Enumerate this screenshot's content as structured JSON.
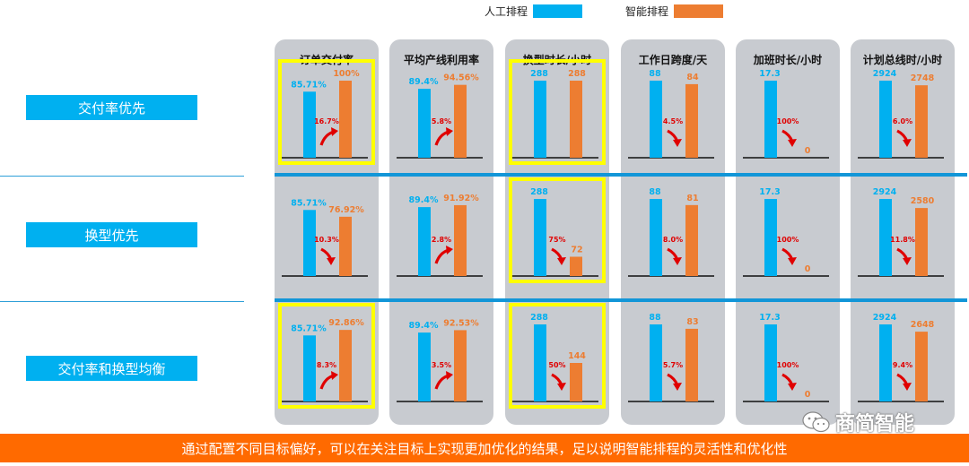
{
  "legend": {
    "manual_label": "人工排程",
    "smart_label": "智能排程",
    "manual_color": "#00b0f0",
    "smart_color": "#ed7d31"
  },
  "row_labels": [
    "交付率优先",
    "换型优先",
    "交付率和换型均衡"
  ],
  "footer_text": "通过配置不同目标偏好，可以在关注目标上实现更加优化的结果，足以说明智能排程的灵活性和优化性",
  "watermark_text": "商简智能",
  "chart_data": {
    "type": "bar",
    "series_names": [
      "人工排程",
      "智能排程"
    ],
    "metrics": [
      {
        "title": "订单交付率",
        "scale_max": 100,
        "rows": [
          {
            "manual": 85.71,
            "smart": 100,
            "manual_label": "85.71%",
            "smart_label": "100%",
            "change": "16.7%",
            "direction": "up",
            "highlighted": true
          },
          {
            "manual": 85.71,
            "smart": 76.92,
            "manual_label": "85.71%",
            "smart_label": "76.92%",
            "change": "10.3%",
            "direction": "down",
            "highlighted": false
          },
          {
            "manual": 85.71,
            "smart": 92.86,
            "manual_label": "85.71%",
            "smart_label": "92.86%",
            "change": "8.3%",
            "direction": "up",
            "highlighted": true
          }
        ]
      },
      {
        "title": "平均产线利用率",
        "scale_max": 100,
        "rows": [
          {
            "manual": 89.4,
            "smart": 94.56,
            "manual_label": "89.4%",
            "smart_label": "94.56%",
            "change": "5.8%",
            "direction": "up",
            "highlighted": false
          },
          {
            "manual": 89.4,
            "smart": 91.92,
            "manual_label": "89.4%",
            "smart_label": "91.92%",
            "change": "2.8%",
            "direction": "up",
            "highlighted": false
          },
          {
            "manual": 89.4,
            "smart": 92.53,
            "manual_label": "89.4%",
            "smart_label": "92.53%",
            "change": "3.5%",
            "direction": "up",
            "highlighted": false
          }
        ]
      },
      {
        "title": "换型时长/小时",
        "scale_max": 288,
        "rows": [
          {
            "manual": 288,
            "smart": 288,
            "manual_label": "288",
            "smart_label": "288",
            "change": "",
            "direction": "none",
            "highlighted": true
          },
          {
            "manual": 288,
            "smart": 72,
            "manual_label": "288",
            "smart_label": "72",
            "change": "75%",
            "direction": "down",
            "highlighted": true
          },
          {
            "manual": 288,
            "smart": 144,
            "manual_label": "288",
            "smart_label": "144",
            "change": "50%",
            "direction": "down",
            "highlighted": true
          }
        ]
      },
      {
        "title": "工作日跨度/天",
        "scale_max": 88,
        "rows": [
          {
            "manual": 88,
            "smart": 84,
            "manual_label": "88",
            "smart_label": "84",
            "change": "4.5%",
            "direction": "down",
            "highlighted": false
          },
          {
            "manual": 88,
            "smart": 81,
            "manual_label": "88",
            "smart_label": "81",
            "change": "8.0%",
            "direction": "down",
            "highlighted": false
          },
          {
            "manual": 88,
            "smart": 83,
            "manual_label": "88",
            "smart_label": "83",
            "change": "5.7%",
            "direction": "down",
            "highlighted": false
          }
        ]
      },
      {
        "title": "加班时长/小时",
        "scale_max": 17.3,
        "rows": [
          {
            "manual": 17.3,
            "smart": 0,
            "manual_label": "17.3",
            "smart_label": "0",
            "change": "100%",
            "direction": "down",
            "highlighted": false
          },
          {
            "manual": 17.3,
            "smart": 0,
            "manual_label": "17.3",
            "smart_label": "0",
            "change": "100%",
            "direction": "down",
            "highlighted": false
          },
          {
            "manual": 17.3,
            "smart": 0,
            "manual_label": "17.3",
            "smart_label": "0",
            "change": "100%",
            "direction": "down",
            "highlighted": false
          }
        ]
      },
      {
        "title": "计划总线时/小时",
        "scale_max": 2924,
        "rows": [
          {
            "manual": 2924,
            "smart": 2748,
            "manual_label": "2924",
            "smart_label": "2748",
            "change": "6.0%",
            "direction": "down",
            "highlighted": false
          },
          {
            "manual": 2924,
            "smart": 2580,
            "manual_label": "2924",
            "smart_label": "2580",
            "change": "11.8%",
            "direction": "down",
            "highlighted": false
          },
          {
            "manual": 2924,
            "smart": 2648,
            "manual_label": "2924",
            "smart_label": "2648",
            "change": "9.4%",
            "direction": "down",
            "highlighted": false
          }
        ]
      }
    ]
  }
}
